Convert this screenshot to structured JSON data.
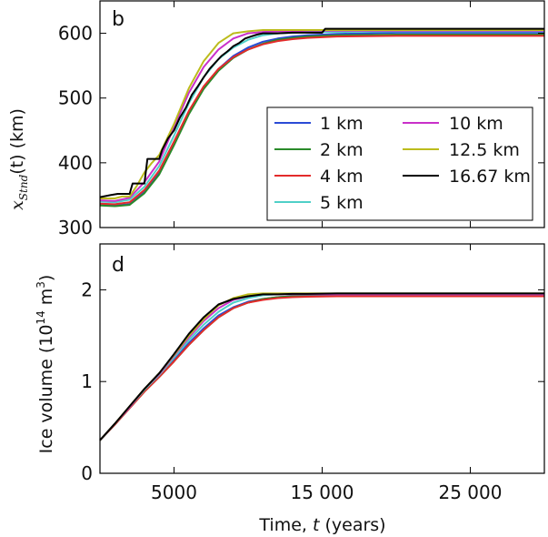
{
  "chart_data": [
    {
      "panel": "b",
      "type": "line",
      "xlabel": "",
      "ylabel": "x_Stnd(t) (km)",
      "ylabel_parts": {
        "symbol": "x",
        "subscript": "Stnd",
        "rest": "(t) (km)"
      },
      "xlim": [
        0,
        30000
      ],
      "ylim": [
        300,
        650
      ],
      "yticks": [
        300,
        400,
        500,
        600
      ],
      "ytick_labels": [
        "300",
        "400",
        "500",
        "600"
      ],
      "legend_position": "center-right",
      "series": [
        {
          "name": "1 km",
          "color": "#2b4bd6",
          "x": [
            0,
            1000,
            2000,
            3000,
            4000,
            5000,
            6000,
            7000,
            8000,
            9000,
            10000,
            11000,
            12000,
            13000,
            14000,
            16000,
            20000,
            30000
          ],
          "y": [
            335,
            334,
            336,
            355,
            385,
            430,
            478,
            517,
            545,
            565,
            578,
            587,
            592,
            595,
            597,
            599,
            601,
            601
          ]
        },
        {
          "name": "2 km",
          "color": "#2a8a2a",
          "x": [
            0,
            1000,
            2000,
            3000,
            4000,
            5000,
            6000,
            7000,
            8000,
            9000,
            10000,
            11000,
            12000,
            13000,
            14000,
            16000,
            20000,
            30000
          ],
          "y": [
            334,
            333,
            335,
            353,
            382,
            427,
            475,
            514,
            542,
            562,
            575,
            584,
            590,
            593,
            595,
            597,
            598,
            598
          ]
        },
        {
          "name": "4 km",
          "color": "#e32b2b",
          "x": [
            0,
            1000,
            2000,
            3000,
            4000,
            5000,
            6000,
            7000,
            8000,
            9000,
            10000,
            11000,
            12000,
            13000,
            14000,
            16000,
            20000,
            30000
          ],
          "y": [
            337,
            336,
            339,
            358,
            388,
            433,
            480,
            518,
            545,
            563,
            575,
            583,
            588,
            591,
            593,
            595,
            596,
            596
          ]
        },
        {
          "name": "5 km",
          "color": "#4fd0c8",
          "x": [
            0,
            1000,
            2000,
            3000,
            4000,
            5000,
            6000,
            7000,
            8000,
            9000,
            10000,
            11000,
            12000,
            13000,
            14000,
            16000,
            20000,
            30000
          ],
          "y": [
            340,
            339,
            343,
            363,
            395,
            442,
            492,
            532,
            560,
            578,
            590,
            597,
            600,
            601,
            602,
            602,
            603,
            603
          ]
        },
        {
          "name": "10 km",
          "color": "#c930c9",
          "x": [
            0,
            1000,
            2000,
            3000,
            4000,
            5000,
            6000,
            7000,
            8000,
            9000,
            10000,
            11000,
            12000,
            13000,
            14000,
            16000,
            20000,
            30000
          ],
          "y": [
            342,
            341,
            346,
            370,
            402,
            455,
            508,
            548,
            575,
            592,
            600,
            602,
            603,
            603,
            604,
            604,
            604,
            604
          ]
        },
        {
          "name": "12.5 km",
          "color": "#bcbc1c",
          "x": [
            0,
            1000,
            1500,
            2000,
            2500,
            3000,
            3500,
            4000,
            5000,
            6000,
            7000,
            8000,
            9000,
            10000,
            11000,
            12000,
            13000,
            14000,
            16000,
            20000,
            30000
          ],
          "y": [
            345,
            345,
            348,
            348,
            365,
            385,
            400,
            412,
            460,
            515,
            557,
            585,
            600,
            603,
            605,
            605,
            605,
            605,
            605,
            605,
            605
          ]
        },
        {
          "name": "16.67 km",
          "color": "#000000",
          "x": [
            0,
            700,
            1200,
            2000,
            2200,
            3000,
            3200,
            4000,
            4200,
            4600,
            5000,
            5400,
            5800,
            6200,
            6600,
            7000,
            7400,
            7800,
            8200,
            8600,
            9000,
            9400,
            9800,
            10200,
            10600,
            11000,
            12000,
            13000,
            14000,
            15000,
            15200,
            20000,
            30000
          ],
          "y": [
            347,
            350,
            352,
            352,
            368,
            368,
            406,
            406,
            420,
            438,
            450,
            470,
            485,
            505,
            518,
            532,
            545,
            555,
            565,
            572,
            580,
            585,
            592,
            595,
            598,
            600,
            600,
            601,
            601,
            601,
            607,
            607,
            607
          ]
        }
      ]
    },
    {
      "panel": "d",
      "type": "line",
      "xlabel": "Time, t (years)",
      "xlabel_parts": {
        "pre": "Time, ",
        "italic": "t",
        "post": " (years)"
      },
      "ylabel": "Ice volume (10^14 m^3)",
      "ylabel_parts": {
        "pre": "Ice volume (10",
        "sup1": "14",
        "mid": " m",
        "sup2": "3",
        "post": ")"
      },
      "xlim": [
        0,
        30000
      ],
      "ylim": [
        0,
        2.5
      ],
      "xticks": [
        5000,
        15000,
        25000
      ],
      "xtick_labels": [
        "5000",
        "15 000",
        "25 000"
      ],
      "yticks": [
        0,
        1,
        2
      ],
      "ytick_labels": [
        "0",
        "1",
        "2"
      ],
      "series": [
        {
          "name": "1 km",
          "color": "#2b4bd6",
          "x": [
            0,
            1000,
            2000,
            3000,
            4000,
            5000,
            6000,
            7000,
            8000,
            9000,
            10000,
            11000,
            12000,
            13000,
            14000,
            16000,
            20000,
            30000
          ],
          "y": [
            0.36,
            0.53,
            0.72,
            0.9,
            1.06,
            1.24,
            1.42,
            1.58,
            1.72,
            1.81,
            1.87,
            1.9,
            1.92,
            1.93,
            1.935,
            1.94,
            1.94,
            1.94
          ]
        },
        {
          "name": "2 km",
          "color": "#2a8a2a",
          "x": [
            0,
            1000,
            2000,
            3000,
            4000,
            5000,
            6000,
            7000,
            8000,
            9000,
            10000,
            11000,
            12000,
            13000,
            14000,
            16000,
            20000,
            30000
          ],
          "y": [
            0.36,
            0.53,
            0.71,
            0.89,
            1.05,
            1.22,
            1.4,
            1.56,
            1.7,
            1.8,
            1.86,
            1.9,
            1.92,
            1.93,
            1.93,
            1.93,
            1.93,
            1.93
          ]
        },
        {
          "name": "4 km",
          "color": "#e32b2b",
          "x": [
            0,
            1000,
            2000,
            3000,
            4000,
            5000,
            6000,
            7000,
            8000,
            9000,
            10000,
            11000,
            12000,
            13000,
            14000,
            16000,
            20000,
            30000
          ],
          "y": [
            0.36,
            0.53,
            0.71,
            0.89,
            1.05,
            1.22,
            1.4,
            1.56,
            1.7,
            1.8,
            1.86,
            1.89,
            1.91,
            1.92,
            1.925,
            1.93,
            1.93,
            1.93
          ]
        },
        {
          "name": "5 km",
          "color": "#4fd0c8",
          "x": [
            0,
            1000,
            2000,
            3000,
            4000,
            5000,
            6000,
            7000,
            8000,
            9000,
            10000,
            11000,
            12000,
            13000,
            14000,
            16000,
            20000,
            30000
          ],
          "y": [
            0.36,
            0.54,
            0.72,
            0.91,
            1.07,
            1.26,
            1.45,
            1.62,
            1.76,
            1.86,
            1.91,
            1.94,
            1.95,
            1.95,
            1.95,
            1.95,
            1.95,
            1.95
          ]
        },
        {
          "name": "10 km",
          "color": "#c930c9",
          "x": [
            0,
            1000,
            2000,
            3000,
            4000,
            5000,
            6000,
            7000,
            8000,
            9000,
            10000,
            11000,
            12000,
            13000,
            14000,
            16000,
            20000,
            30000
          ],
          "y": [
            0.36,
            0.54,
            0.72,
            0.92,
            1.08,
            1.28,
            1.48,
            1.66,
            1.8,
            1.89,
            1.93,
            1.95,
            1.95,
            1.95,
            1.95,
            1.95,
            1.95,
            1.95
          ]
        },
        {
          "name": "12.5 km",
          "color": "#bcbc1c",
          "x": [
            0,
            1000,
            2000,
            3000,
            4000,
            5000,
            6000,
            7000,
            8000,
            9000,
            10000,
            11000,
            12000,
            13000,
            14000,
            16000,
            20000,
            30000
          ],
          "y": [
            0.36,
            0.54,
            0.73,
            0.92,
            1.09,
            1.29,
            1.5,
            1.68,
            1.83,
            1.91,
            1.95,
            1.96,
            1.96,
            1.96,
            1.96,
            1.96,
            1.96,
            1.96
          ]
        },
        {
          "name": "16.67 km",
          "color": "#000000",
          "x": [
            0,
            1000,
            2000,
            3000,
            4000,
            5000,
            6000,
            7000,
            8000,
            9000,
            10000,
            11000,
            12000,
            13000,
            14000,
            16000,
            20000,
            30000
          ],
          "y": [
            0.36,
            0.54,
            0.73,
            0.92,
            1.09,
            1.3,
            1.52,
            1.7,
            1.84,
            1.9,
            1.93,
            1.95,
            1.95,
            1.955,
            1.955,
            1.96,
            1.96,
            1.96
          ]
        }
      ]
    }
  ]
}
